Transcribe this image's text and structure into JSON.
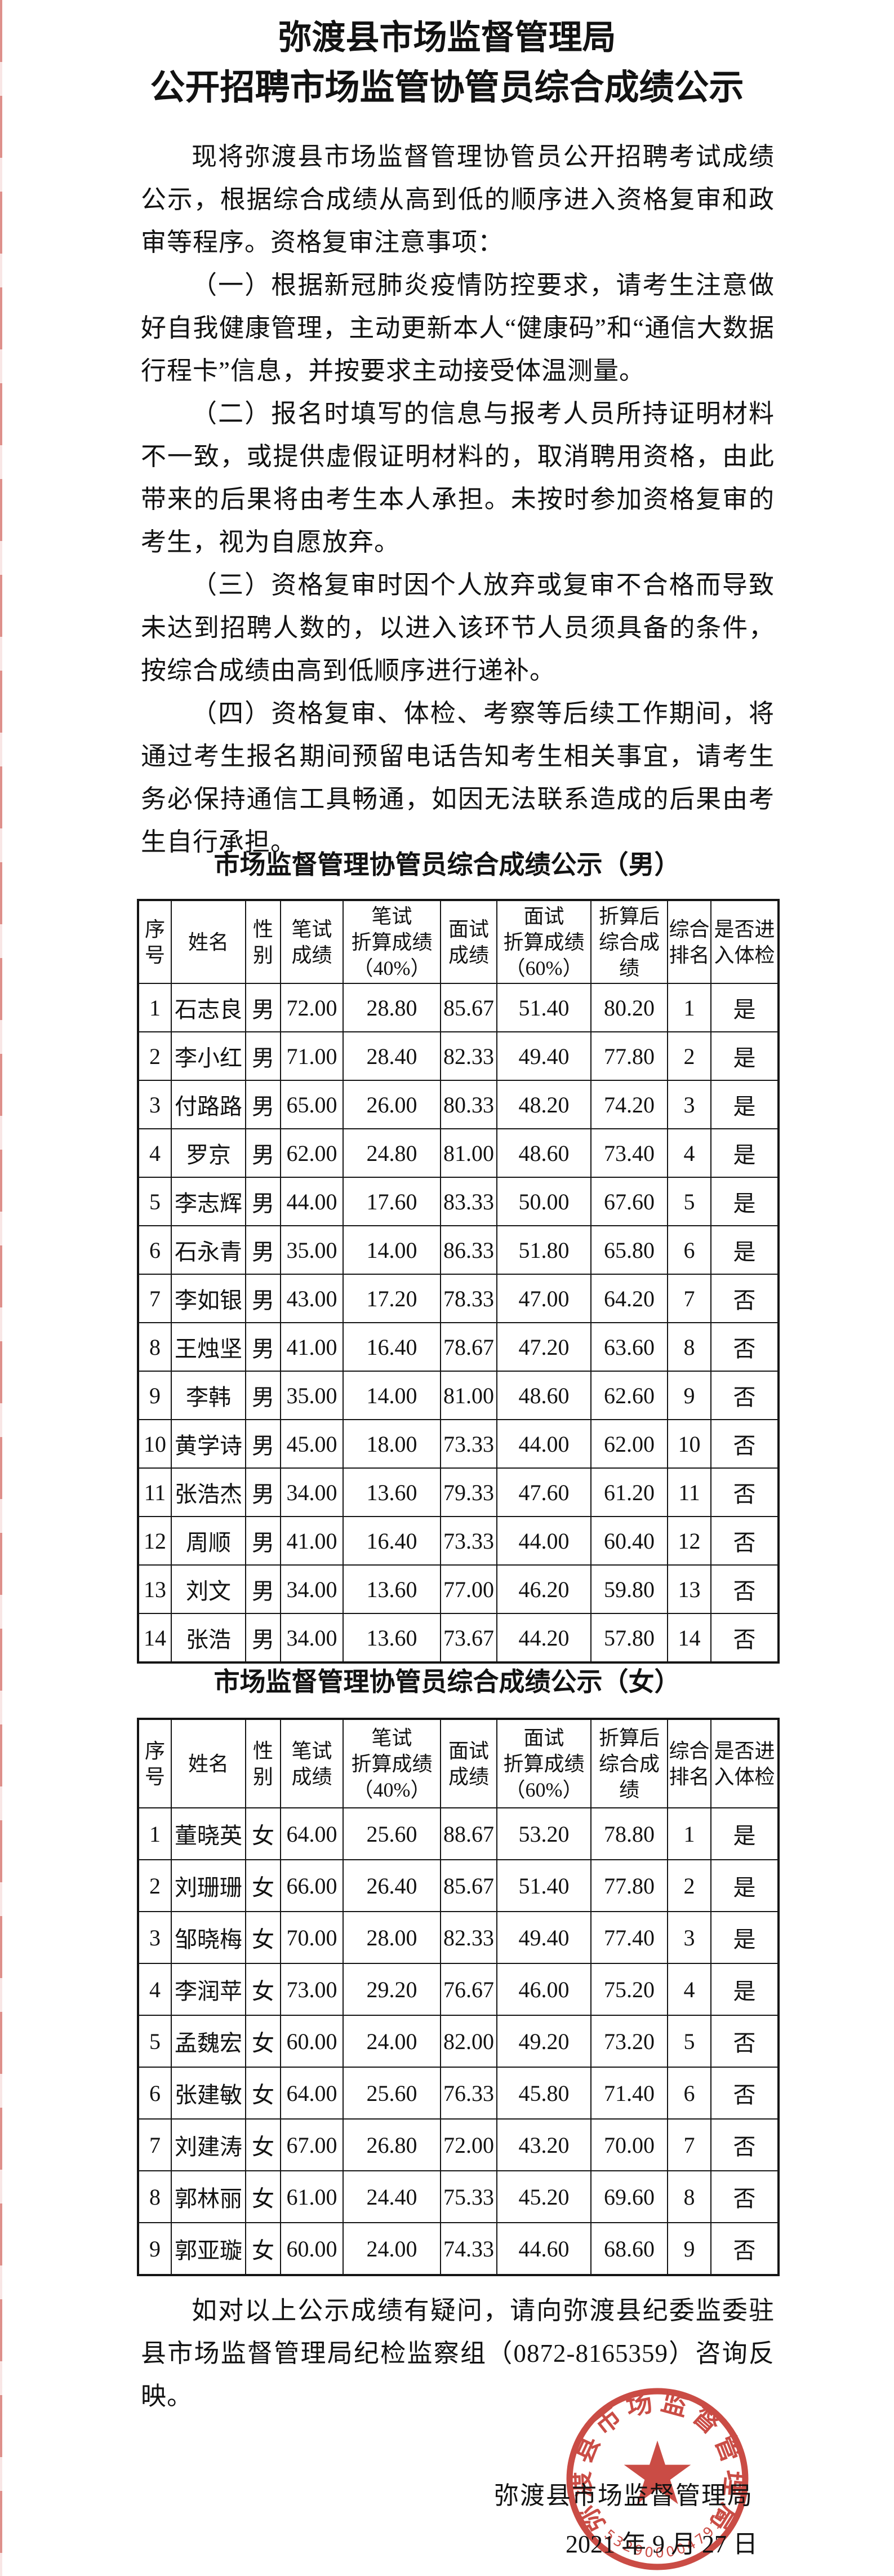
{
  "page": {
    "background": "#ffffff",
    "seal_red": "#c3342c",
    "ink": "#121212"
  },
  "doc": {
    "title_lines": [
      "弥渡县市场监督管理局",
      "公开招聘市场监管协管员综合成绩公示"
    ],
    "paragraphs": [
      "现将弥渡县市场监督管理协管员公开招聘考试成绩公示，根据综合成绩从高到低的顺序进入资格复审和政审等程序。资格复审注意事项：",
      "（一）根据新冠肺炎疫情防控要求，请考生注意做好自我健康管理，主动更新本人“健康码”和“通信大数据行程卡”信息，并按要求主动接受体温测量。",
      "（二）报名时填写的信息与报考人员所持证明材料不一致，或提供虚假证明材料的，取消聘用资格，由此带来的后果将由考生本人承担。未按时参加资格复审的考生，视为自愿放弃。",
      "（三）资格复审时因个人放弃或复审不合格而导致未达到招聘人数的，以进入该环节人员须具备的条件，按综合成绩由高到低顺序进行递补。",
      "（四）资格复审、体检、考察等后续工作期间，将通过考生报名期间预留电话告知考生相关事宜，请考生务必保持通信工具畅通，如因无法联系造成的后果由考生自行承担。"
    ],
    "closing": "如对以上公示成绩有疑问，请向弥渡县纪委监委驻县市场监督管理局纪检监察组（0872-8165359）咨询反映。",
    "signature": "弥渡县市场监督管理局",
    "date": "2021 年 9 月 27 日"
  },
  "tables": [
    {
      "title": "市场监督管理协管员综合成绩公示（男）",
      "headers": [
        "序\n号",
        "姓名",
        "性\n别",
        "笔试\n成绩",
        "笔试\n折算成绩\n（40%）",
        "面试\n成绩",
        "面试\n折算成绩\n（60%）",
        "折算后\n综合成绩",
        "综合\n排名",
        "是否进\n入体检"
      ],
      "rows": [
        [
          "1",
          "石志良",
          "男",
          "72.00",
          "28.80",
          "85.67",
          "51.40",
          "80.20",
          "1",
          "是"
        ],
        [
          "2",
          "李小红",
          "男",
          "71.00",
          "28.40",
          "82.33",
          "49.40",
          "77.80",
          "2",
          "是"
        ],
        [
          "3",
          "付路路",
          "男",
          "65.00",
          "26.00",
          "80.33",
          "48.20",
          "74.20",
          "3",
          "是"
        ],
        [
          "4",
          "罗京",
          "男",
          "62.00",
          "24.80",
          "81.00",
          "48.60",
          "73.40",
          "4",
          "是"
        ],
        [
          "5",
          "李志辉",
          "男",
          "44.00",
          "17.60",
          "83.33",
          "50.00",
          "67.60",
          "5",
          "是"
        ],
        [
          "6",
          "石永青",
          "男",
          "35.00",
          "14.00",
          "86.33",
          "51.80",
          "65.80",
          "6",
          "是"
        ],
        [
          "7",
          "李如银",
          "男",
          "43.00",
          "17.20",
          "78.33",
          "47.00",
          "64.20",
          "7",
          "否"
        ],
        [
          "8",
          "王烛坚",
          "男",
          "41.00",
          "16.40",
          "78.67",
          "47.20",
          "63.60",
          "8",
          "否"
        ],
        [
          "9",
          "李韩",
          "男",
          "35.00",
          "14.00",
          "81.00",
          "48.60",
          "62.60",
          "9",
          "否"
        ],
        [
          "10",
          "黄学诗",
          "男",
          "45.00",
          "18.00",
          "73.33",
          "44.00",
          "62.00",
          "10",
          "否"
        ],
        [
          "11",
          "张浩杰",
          "男",
          "34.00",
          "13.60",
          "79.33",
          "47.60",
          "61.20",
          "11",
          "否"
        ],
        [
          "12",
          "周顺",
          "男",
          "41.00",
          "16.40",
          "73.33",
          "44.00",
          "60.40",
          "12",
          "否"
        ],
        [
          "13",
          "刘文",
          "男",
          "34.00",
          "13.60",
          "77.00",
          "46.20",
          "59.80",
          "13",
          "否"
        ],
        [
          "14",
          "张浩",
          "男",
          "34.00",
          "13.60",
          "73.67",
          "44.20",
          "57.80",
          "14",
          "否"
        ]
      ]
    },
    {
      "title": "市场监督管理协管员综合成绩公示（女）",
      "headers": [
        "序号",
        "姓名",
        "性别",
        "笔试\n成绩",
        "笔试\n折算成绩\n（40%）",
        "面试\n成绩",
        "面试\n折算成绩\n（60%）",
        "折算后\n综合成绩",
        "综合\n排名",
        "是否进\n入体检"
      ],
      "rows": [
        [
          "1",
          "董晓英",
          "女",
          "64.00",
          "25.60",
          "88.67",
          "53.20",
          "78.80",
          "1",
          "是"
        ],
        [
          "2",
          "刘珊珊",
          "女",
          "66.00",
          "26.40",
          "85.67",
          "51.40",
          "77.80",
          "2",
          "是"
        ],
        [
          "3",
          "邹晓梅",
          "女",
          "70.00",
          "28.00",
          "82.33",
          "49.40",
          "77.40",
          "3",
          "是"
        ],
        [
          "4",
          "李润苹",
          "女",
          "73.00",
          "29.20",
          "76.67",
          "46.00",
          "75.20",
          "4",
          "是"
        ],
        [
          "5",
          "孟魏宏",
          "女",
          "60.00",
          "24.00",
          "82.00",
          "49.20",
          "73.20",
          "5",
          "否"
        ],
        [
          "6",
          "张建敏",
          "女",
          "64.00",
          "25.60",
          "76.33",
          "45.80",
          "71.40",
          "6",
          "否"
        ],
        [
          "7",
          "刘建涛",
          "女",
          "67.00",
          "26.80",
          "72.00",
          "43.20",
          "70.00",
          "7",
          "否"
        ],
        [
          "8",
          "郭林丽",
          "女",
          "61.00",
          "24.40",
          "75.33",
          "45.20",
          "69.60",
          "8",
          "否"
        ],
        [
          "9",
          "郭亚璇",
          "女",
          "60.00",
          "24.00",
          "74.33",
          "44.60",
          "68.60",
          "9",
          "否"
        ]
      ]
    }
  ],
  "seal": {
    "org": "弥渡县市场监督管理局",
    "code": "5329000047916",
    "color": "#c3342c"
  }
}
